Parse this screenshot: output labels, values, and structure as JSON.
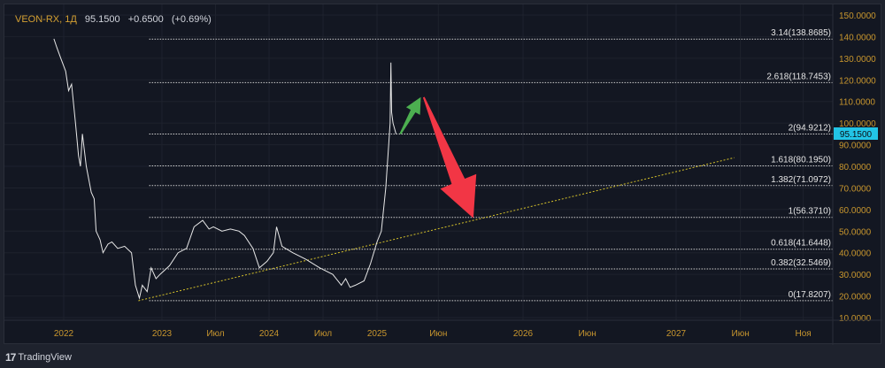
{
  "header": {
    "symbol": "VEON-RX, 1Д",
    "price": "95.1500",
    "change": "+0.6500",
    "change_pct": "(+0.69%)"
  },
  "footer": {
    "brand": "TradingView"
  },
  "colors": {
    "background": "#131722",
    "axis_text": "#c8962e",
    "price_line": "#e8e8e8",
    "trend": "#d6c22a",
    "green_arrow": "#4caf50",
    "red_arrow": "#f23645",
    "price_badge": "#22c4e6"
  },
  "chart_data": {
    "type": "line",
    "title": "VEON-RX, 1Д",
    "ylim": [
      10,
      150
    ],
    "y_ticks": [
      "150.0000",
      "140.0000",
      "130.0000",
      "120.0000",
      "110.0000",
      "100.0000",
      "90.0000",
      "80.0000",
      "70.0000",
      "60.0000",
      "50.0000",
      "40.0000",
      "30.0000",
      "20.0000",
      "10.0000"
    ],
    "x_ticks": [
      {
        "label": "2022",
        "t": 2022
      },
      {
        "label": "2023",
        "t": 2023
      },
      {
        "label": "Июл",
        "t": 2023.5
      },
      {
        "label": "2024",
        "t": 2024
      },
      {
        "label": "Июл",
        "t": 2024.5
      },
      {
        "label": "2025",
        "t": 2025
      },
      {
        "label": "Июн",
        "t": 2025.42
      },
      {
        "label": "2026",
        "t": 2026
      },
      {
        "label": "Июн",
        "t": 2026.42
      },
      {
        "label": "2027",
        "t": 2027
      },
      {
        "label": "Июн",
        "t": 2027.42
      },
      {
        "label": "Ноя",
        "t": 2027.83
      }
    ],
    "current_price": "95.1500",
    "current_value": 95.15,
    "series": [
      {
        "name": "VEON-RX",
        "points": [
          [
            2021.9,
            139
          ],
          [
            2021.93,
            135
          ],
          [
            2021.97,
            130
          ],
          [
            2022.02,
            124
          ],
          [
            2022.05,
            115
          ],
          [
            2022.08,
            118
          ],
          [
            2022.12,
            100
          ],
          [
            2022.15,
            85
          ],
          [
            2022.17,
            80
          ],
          [
            2022.19,
            95
          ],
          [
            2022.23,
            80
          ],
          [
            2022.28,
            68
          ],
          [
            2022.31,
            65
          ],
          [
            2022.33,
            50
          ],
          [
            2022.37,
            46
          ],
          [
            2022.4,
            40
          ],
          [
            2022.45,
            44
          ],
          [
            2022.49,
            45
          ],
          [
            2022.55,
            42
          ],
          [
            2022.62,
            43
          ],
          [
            2022.69,
            40
          ],
          [
            2022.73,
            25
          ],
          [
            2022.77,
            19
          ],
          [
            2022.8,
            25
          ],
          [
            2022.85,
            22
          ],
          [
            2022.89,
            33
          ],
          [
            2022.94,
            28
          ],
          [
            2022.98,
            30
          ],
          [
            2023.07,
            34
          ],
          [
            2023.15,
            40
          ],
          [
            2023.23,
            42
          ],
          [
            2023.3,
            52
          ],
          [
            2023.38,
            55
          ],
          [
            2023.44,
            51
          ],
          [
            2023.48,
            52
          ],
          [
            2023.56,
            50
          ],
          [
            2023.64,
            51
          ],
          [
            2023.72,
            50
          ],
          [
            2023.77,
            48
          ],
          [
            2023.85,
            42
          ],
          [
            2023.91,
            33
          ],
          [
            2023.98,
            36
          ],
          [
            2024.04,
            40
          ],
          [
            2024.07,
            52
          ],
          [
            2024.12,
            43
          ],
          [
            2024.22,
            40
          ],
          [
            2024.34,
            37
          ],
          [
            2024.47,
            33
          ],
          [
            2024.59,
            30
          ],
          [
            2024.67,
            25
          ],
          [
            2024.71,
            28
          ],
          [
            2024.75,
            24
          ],
          [
            2024.8,
            25
          ],
          [
            2024.88,
            27
          ],
          [
            2024.94,
            35
          ],
          [
            2025.0,
            45
          ],
          [
            2025.03,
            50
          ],
          [
            2025.06,
            70
          ],
          [
            2025.08,
            90
          ],
          [
            2025.09,
            100
          ],
          [
            2025.095,
            128
          ],
          [
            2025.1,
            105
          ],
          [
            2025.11,
            100
          ],
          [
            2025.13,
            95
          ]
        ]
      }
    ],
    "trendline": {
      "from": [
        2022.76,
        17.8
      ],
      "to": [
        2027.38,
        84
      ]
    },
    "fib_levels": [
      {
        "label": "3.14(138.8685)",
        "value": 138.8685
      },
      {
        "label": "2.618(118.7453)",
        "value": 118.7453
      },
      {
        "label": "2(94.9212)",
        "value": 94.9212
      },
      {
        "label": "1.618(80.1950)",
        "value": 80.195
      },
      {
        "label": "1.382(71.0972)",
        "value": 71.0972
      },
      {
        "label": "1(56.3710)",
        "value": 56.371
      },
      {
        "label": "0.618(41.6448)",
        "value": 41.6448
      },
      {
        "label": "0.382(32.5469)",
        "value": 32.5469
      },
      {
        "label": "0(17.8207)",
        "value": 17.8207
      }
    ],
    "fib_start_t": 2022.87,
    "arrows": [
      {
        "name": "green-up-arrow",
        "from": [
          2025.16,
          95
        ],
        "to": [
          2025.3,
          112
        ]
      },
      {
        "name": "red-down-arrow",
        "from": [
          2025.32,
          112
        ],
        "to": [
          2025.66,
          56
        ]
      }
    ]
  }
}
